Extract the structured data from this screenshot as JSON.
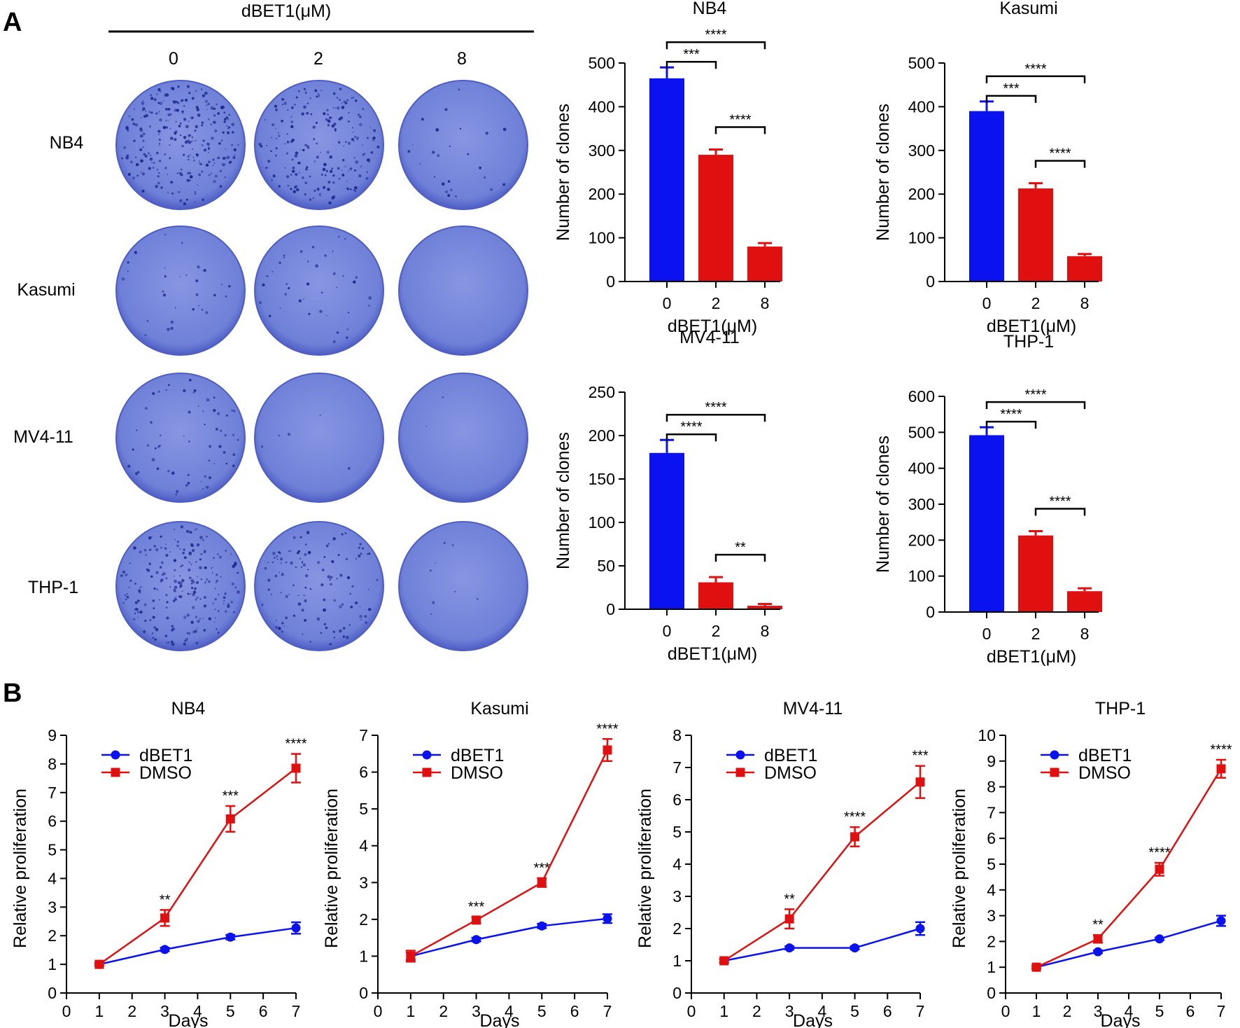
{
  "figure": {
    "panel_a_label": "A",
    "panel_b_label": "B",
    "dose_header": "dBET1(μM)",
    "dose_columns": [
      "0",
      "2",
      "8"
    ],
    "plate_rows": [
      "NB4",
      "Kasumi",
      "MV4-11",
      "THP-1"
    ]
  },
  "colors": {
    "control": "#0a12f0",
    "treated": "#e01010",
    "plate_fill": "#6f80d8",
    "plate_edge": "#4d5dc4",
    "colony": "#1f2a8f"
  },
  "chart_data": [
    {
      "type": "bar",
      "title": "NB4",
      "xlabel": "dBET1(μM)",
      "ylabel": "Number of clones",
      "categories": [
        "0",
        "2",
        "8"
      ],
      "values": [
        465,
        290,
        80
      ],
      "errors": [
        25,
        12,
        8
      ],
      "ylim": [
        0,
        500
      ],
      "yticks": [
        0,
        100,
        200,
        300,
        400,
        500
      ],
      "brackets": [
        {
          "from": 0,
          "to": 1,
          "label": "***"
        },
        {
          "from": 0,
          "to": 2,
          "label": "****"
        },
        {
          "from": 1,
          "to": 2,
          "label": "****"
        }
      ]
    },
    {
      "type": "bar",
      "title": "Kasumi",
      "xlabel": "dBET1(μM)",
      "ylabel": "Number of clones",
      "categories": [
        "0",
        "2",
        "8"
      ],
      "values": [
        390,
        213,
        58
      ],
      "errors": [
        22,
        12,
        5
      ],
      "ylim": [
        0,
        500
      ],
      "yticks": [
        0,
        100,
        200,
        300,
        400,
        500
      ],
      "brackets": [
        {
          "from": 0,
          "to": 1,
          "label": "***"
        },
        {
          "from": 0,
          "to": 2,
          "label": "****"
        },
        {
          "from": 1,
          "to": 2,
          "label": "****"
        }
      ]
    },
    {
      "type": "bar",
      "title": "MV4-11",
      "xlabel": "dBET1(μM)",
      "ylabel": "Number of clones",
      "categories": [
        "0",
        "2",
        "8"
      ],
      "values": [
        180,
        31,
        4
      ],
      "errors": [
        15,
        6,
        2
      ],
      "ylim": [
        0,
        250
      ],
      "yticks": [
        0,
        50,
        100,
        150,
        200,
        250
      ],
      "brackets": [
        {
          "from": 0,
          "to": 1,
          "label": "****"
        },
        {
          "from": 0,
          "to": 2,
          "label": "****"
        },
        {
          "from": 1,
          "to": 2,
          "label": "**"
        }
      ]
    },
    {
      "type": "bar",
      "title": "THP-1",
      "xlabel": "dBET1(μM)",
      "ylabel": "Number of clones",
      "categories": [
        "0",
        "2",
        "8"
      ],
      "values": [
        492,
        213,
        58
      ],
      "errors": [
        22,
        12,
        8
      ],
      "ylim": [
        0,
        600
      ],
      "yticks": [
        0,
        100,
        200,
        300,
        400,
        500,
        600
      ],
      "brackets": [
        {
          "from": 0,
          "to": 1,
          "label": "****"
        },
        {
          "from": 0,
          "to": 2,
          "label": "****"
        },
        {
          "from": 1,
          "to": 2,
          "label": "****"
        }
      ]
    },
    {
      "type": "line",
      "title": "NB4",
      "xlabel": "Days",
      "ylabel": "Relative proliferation",
      "x": [
        1,
        3,
        5,
        7
      ],
      "xlim": [
        0,
        7
      ],
      "xticks": [
        0,
        1,
        2,
        3,
        4,
        5,
        6,
        7
      ],
      "ylim": [
        0,
        9
      ],
      "yticks": [
        0,
        1,
        2,
        3,
        4,
        5,
        6,
        7,
        8,
        9
      ],
      "legend_position": "top-left",
      "series": [
        {
          "name": "dBET1",
          "marker": "circle",
          "values": [
            1.0,
            1.52,
            1.95,
            2.27
          ],
          "errors": [
            0.05,
            0.06,
            0.08,
            0.2
          ]
        },
        {
          "name": "DMSO",
          "marker": "square",
          "values": [
            1.0,
            2.62,
            6.08,
            7.85
          ],
          "errors": [
            0.05,
            0.28,
            0.45,
            0.5
          ]
        }
      ],
      "annotations": [
        "",
        "**",
        "***",
        "****"
      ]
    },
    {
      "type": "line",
      "title": "Kasumi",
      "xlabel": "Days",
      "ylabel": "Relative proliferation",
      "x": [
        1,
        3,
        5,
        7
      ],
      "xlim": [
        0,
        7
      ],
      "xticks": [
        0,
        1,
        2,
        3,
        4,
        5,
        6,
        7
      ],
      "ylim": [
        0,
        7
      ],
      "yticks": [
        0,
        1,
        2,
        3,
        4,
        5,
        6,
        7
      ],
      "legend_position": "top-left",
      "series": [
        {
          "name": "dBET1",
          "marker": "circle",
          "values": [
            1.0,
            1.45,
            1.82,
            2.02
          ],
          "errors": [
            0.1,
            0.05,
            0.06,
            0.12
          ]
        },
        {
          "name": "DMSO",
          "marker": "square",
          "values": [
            1.0,
            1.98,
            3.0,
            6.6
          ],
          "errors": [
            0.15,
            0.08,
            0.12,
            0.3
          ]
        }
      ],
      "annotations": [
        "",
        "***",
        "***",
        "****"
      ]
    },
    {
      "type": "line",
      "title": "MV4-11",
      "xlabel": "Days",
      "ylabel": "Relative proliferation",
      "x": [
        1,
        3,
        5,
        7
      ],
      "xlim": [
        0,
        7
      ],
      "xticks": [
        0,
        1,
        2,
        3,
        4,
        5,
        6,
        7
      ],
      "ylim": [
        0,
        8
      ],
      "yticks": [
        0,
        1,
        2,
        3,
        4,
        5,
        6,
        7,
        8
      ],
      "legend_position": "top-left",
      "series": [
        {
          "name": "dBET1",
          "marker": "circle",
          "values": [
            1.0,
            1.4,
            1.4,
            2.0
          ],
          "errors": [
            0.05,
            0.05,
            0.05,
            0.2
          ]
        },
        {
          "name": "DMSO",
          "marker": "square",
          "values": [
            1.0,
            2.3,
            4.85,
            6.55
          ],
          "errors": [
            0.05,
            0.3,
            0.3,
            0.5
          ]
        }
      ],
      "annotations": [
        "",
        "**",
        "****",
        "***"
      ]
    },
    {
      "type": "line",
      "title": "THP-1",
      "xlabel": "Days",
      "ylabel": "Relative proliferation",
      "x": [
        1,
        3,
        5,
        7
      ],
      "xlim": [
        0,
        7
      ],
      "xticks": [
        0,
        1,
        2,
        3,
        4,
        5,
        6,
        7
      ],
      "ylim": [
        0,
        10
      ],
      "yticks": [
        0,
        1,
        2,
        3,
        4,
        5,
        6,
        7,
        8,
        9,
        10
      ],
      "legend_position": "top-left",
      "series": [
        {
          "name": "dBET1",
          "marker": "circle",
          "values": [
            1.0,
            1.6,
            2.1,
            2.8
          ],
          "errors": [
            0.05,
            0.05,
            0.05,
            0.2
          ]
        },
        {
          "name": "DMSO",
          "marker": "square",
          "values": [
            1.0,
            2.1,
            4.8,
            8.7
          ],
          "errors": [
            0.05,
            0.15,
            0.25,
            0.35
          ]
        }
      ],
      "annotations": [
        "",
        "**",
        "****",
        "****"
      ]
    }
  ]
}
